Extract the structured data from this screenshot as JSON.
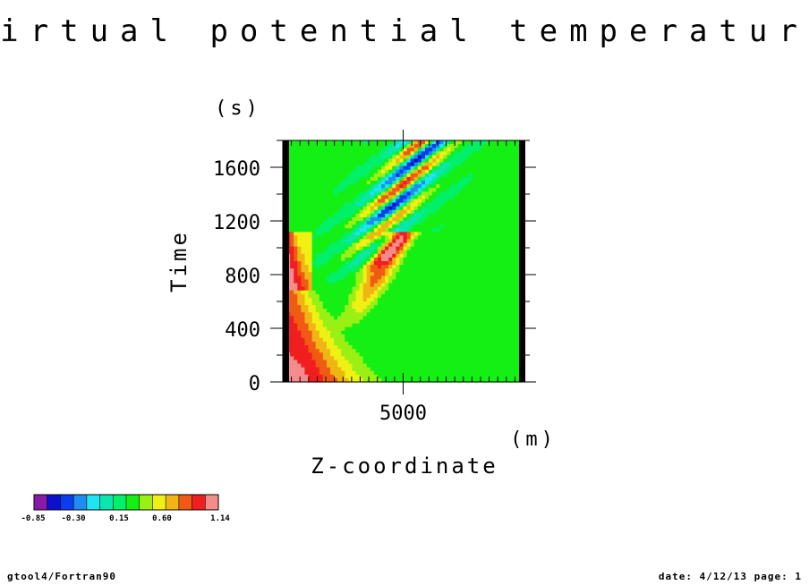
{
  "chart_data": {
    "type": "heatmap",
    "title": "virtual potential temperature",
    "xlabel": "Z-coordinate",
    "xunit": "(m)",
    "ylabel": "Time",
    "yunit": "(s)",
    "x_ticks": [
      "5000"
    ],
    "y_ticks": [
      "0",
      "400",
      "800",
      "1200",
      "1600"
    ],
    "x_tick_values": [
      5000
    ],
    "y_tick_values": [
      0,
      400,
      800,
      1200,
      1600
    ],
    "xlim": [
      0,
      10000
    ],
    "ylim": [
      0,
      1800
    ],
    "colorbar": {
      "labels": [
        "-0.85",
        "-0.30",
        "0.15",
        "0.60",
        "1.14"
      ],
      "min": -0.85,
      "max": 1.14,
      "colors": [
        "#8a1aa8",
        "#0a10cc",
        "#0a3cf0",
        "#1e8cf0",
        "#1ee6f0",
        "#0ae6b0",
        "#00f06a",
        "#14f014",
        "#9af014",
        "#f0f014",
        "#f0b414",
        "#f05a14",
        "#f01e1e",
        "#f58c8c"
      ]
    },
    "background_value": 0.15,
    "features": [
      {
        "kind": "warm-anomaly",
        "description_value_max": 1.14
      },
      {
        "kind": "cold-anomaly",
        "description_value_min": -0.85
      }
    ]
  },
  "footer": {
    "left": "gtool4/Fortran90",
    "right": "date: 4/12/13 page: 1"
  }
}
